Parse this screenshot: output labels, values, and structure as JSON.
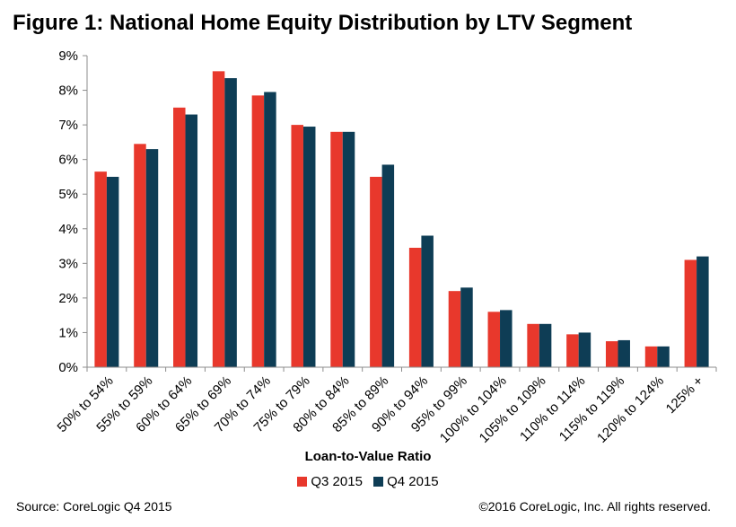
{
  "chart_data": {
    "type": "bar",
    "title": "Figure 1: National Home Equity Distribution by LTV Segment",
    "xlabel": "Loan-to-Value Ratio",
    "ylabel": "",
    "ylim": [
      0,
      9
    ],
    "yticks": [
      "0%",
      "1%",
      "2%",
      "3%",
      "4%",
      "5%",
      "6%",
      "7%",
      "8%",
      "9%"
    ],
    "categories": [
      "50% to 54%",
      "55% to 59%",
      "60% to 64%",
      "65% to 69%",
      "70% to 74%",
      "75% to 79%",
      "80% to 84%",
      "85% to 89%",
      "90% to 94%",
      "95% to 99%",
      "100% to 104%",
      "105% to 109%",
      "110% to 114%",
      "115% to 119%",
      "120% to 124%",
      "125% +"
    ],
    "series": [
      {
        "name": "Q3 2015",
        "color": "#e8382c",
        "values": [
          5.65,
          6.45,
          7.5,
          8.55,
          7.85,
          7.0,
          6.8,
          5.5,
          3.45,
          2.2,
          1.6,
          1.25,
          0.95,
          0.75,
          0.6,
          3.1
        ]
      },
      {
        "name": "Q4 2015",
        "color": "#0e3d55",
        "values": [
          5.5,
          6.3,
          7.3,
          8.35,
          7.95,
          6.95,
          6.8,
          5.85,
          3.8,
          2.3,
          1.65,
          1.25,
          1.0,
          0.78,
          0.6,
          3.2
        ]
      }
    ],
    "grid": false,
    "legend": "bottom"
  },
  "source": "Source: CoreLogic Q4 2015",
  "copyright": "©2016 CoreLogic, Inc. All rights reserved."
}
